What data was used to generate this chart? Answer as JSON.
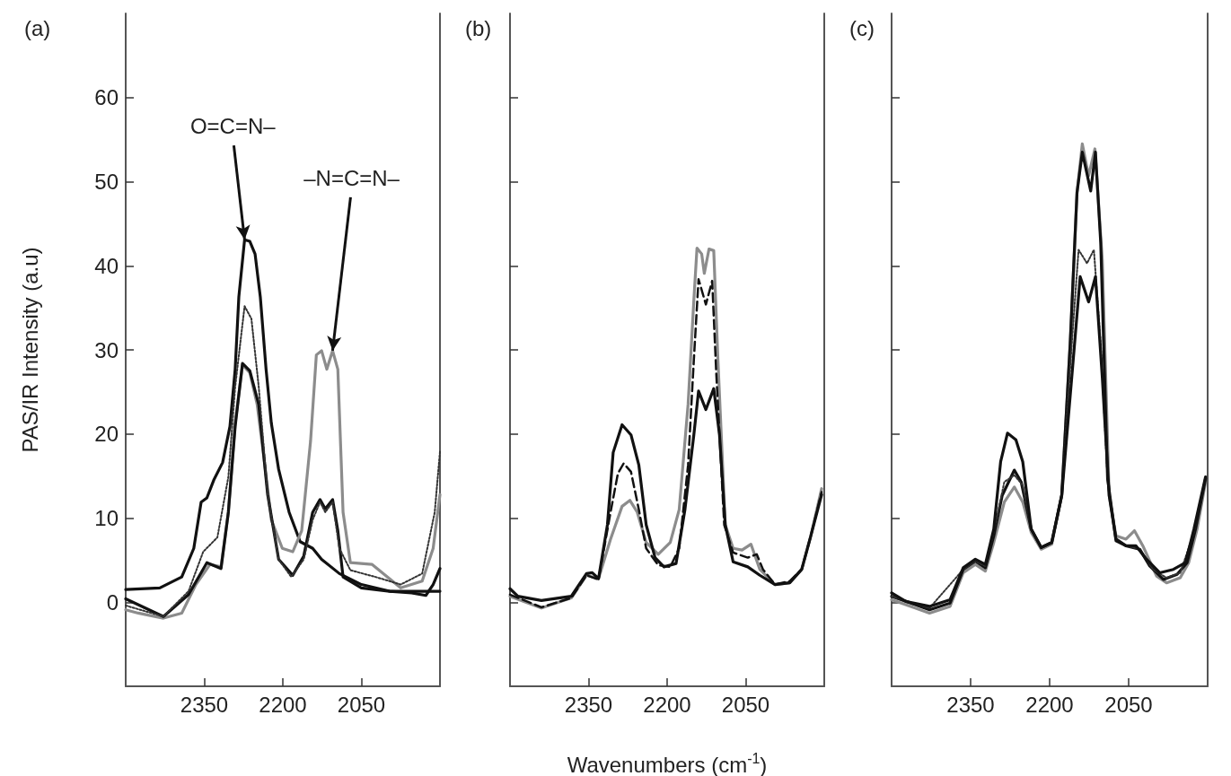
{
  "chart_data": [
    {
      "type": "line",
      "title": "(a)",
      "ylabel": "PAS/IR Intensity (a.u)",
      "xlim": [
        2500,
        1900
      ],
      "xticks": [
        2350,
        2200,
        2050
      ],
      "ylim": [
        -10,
        70
      ],
      "yticks": [
        0,
        10,
        20,
        30,
        40,
        50,
        60
      ],
      "annotations": [
        {
          "text": "O=C=N–",
          "x": 2273,
          "y": 43.1
        },
        {
          "text": "–N=C=N–",
          "x": 2105,
          "y": 29.9
        }
      ],
      "series": [
        {
          "color": "#111111",
          "x": [
            2500,
            2435,
            2393,
            2370,
            2356,
            2345,
            2332,
            2315,
            2301,
            2291,
            2284,
            2273,
            2263,
            2253,
            2243,
            2232,
            2222,
            2208,
            2188,
            2167,
            2143,
            2126,
            2092,
            2050,
            1996,
            1954,
            1927,
            1913,
            1900
          ],
          "values": [
            1.5,
            1.7,
            3.0,
            6.4,
            11.9,
            12.4,
            14.5,
            16.6,
            20.9,
            27.7,
            36.3,
            43.1,
            42.9,
            41.4,
            36.3,
            27.7,
            21.3,
            15.8,
            10.7,
            7.2,
            6.4,
            5.1,
            3.4,
            2.1,
            1.3,
            1.1,
            0.8,
            2.1,
            4.0
          ]
        },
        {
          "color": "#8c8c8c",
          "x": [
            2500,
            2476,
            2428,
            2393,
            2366,
            2339,
            2318,
            2304,
            2291,
            2277,
            2263,
            2249,
            2236,
            2222,
            2201,
            2181,
            2164,
            2147,
            2136,
            2126,
            2116,
            2105,
            2095,
            2085,
            2071,
            2030,
            1975,
            1934,
            1913,
            1900
          ],
          "values": [
            -0.9,
            -1.3,
            -1.9,
            -1.3,
            2.1,
            4.5,
            4.2,
            10.7,
            21.3,
            28.2,
            27.3,
            23.5,
            17.1,
            9.8,
            6.4,
            6.0,
            8.5,
            19.2,
            29.4,
            29.9,
            27.7,
            29.9,
            27.7,
            10.7,
            4.7,
            4.5,
            1.7,
            2.5,
            6.4,
            12.8
          ]
        },
        {
          "color": "#111111",
          "x": [
            2500,
            2428,
            2380,
            2345,
            2318,
            2304,
            2291,
            2277,
            2263,
            2246,
            2229,
            2208,
            2181,
            2160,
            2143,
            2129,
            2119,
            2105,
            2095,
            2085,
            2050,
            1996,
            1934,
            1900
          ],
          "values": [
            0.4,
            -1.7,
            0.9,
            4.7,
            4.0,
            10.7,
            20.9,
            28.4,
            27.5,
            23.5,
            12.8,
            5.1,
            3.2,
            5.5,
            10.7,
            12.2,
            11.1,
            12.2,
            8.5,
            3.0,
            1.7,
            1.3,
            1.3,
            1.3
          ]
        },
        {
          "color": "#333333",
          "line_style": "dotted",
          "x": [
            2500,
            2428,
            2380,
            2352,
            2325,
            2304,
            2291,
            2273,
            2260,
            2246,
            2229,
            2208,
            2184,
            2160,
            2143,
            2129,
            2119,
            2105,
            2092,
            2071,
            2023,
            1975,
            1934,
            1910,
            1900
          ],
          "values": [
            -0.4,
            -1.7,
            1.3,
            6.0,
            7.7,
            14.9,
            25.6,
            35.2,
            33.7,
            25.6,
            12.8,
            5.1,
            3.0,
            5.1,
            9.8,
            11.9,
            10.7,
            11.9,
            6.4,
            3.8,
            3.0,
            2.1,
            3.4,
            10.7,
            17.9
          ]
        }
      ]
    },
    {
      "type": "line",
      "title": "(b)",
      "xlabel": "Wavenumbers (cm$^{-1}$)",
      "xlim": [
        2500,
        1900
      ],
      "xticks": [
        2350,
        2200,
        2050
      ],
      "ylim": [
        -10,
        70
      ],
      "yticks": [
        0,
        10,
        20,
        30,
        40,
        50,
        60
      ],
      "tick_labels": "x",
      "series": [
        {
          "color": "#8c8c8c",
          "x": [
            2500,
            2440,
            2383,
            2354,
            2331,
            2308,
            2286,
            2271,
            2257,
            2240,
            2217,
            2194,
            2177,
            2160,
            2149,
            2143,
            2134,
            2129,
            2120,
            2111,
            2103,
            2089,
            2074,
            2057,
            2040,
            2023,
            1994,
            1966,
            1943,
            1926,
            1905
          ],
          "values": [
            0.7,
            -0.7,
            0.5,
            3.2,
            2.8,
            7.5,
            11.4,
            12.1,
            10.7,
            7.1,
            5.7,
            7.1,
            11.0,
            23.5,
            35.9,
            42.1,
            41.4,
            39.1,
            42.0,
            41.8,
            28.8,
            9.2,
            6.4,
            6.2,
            6.9,
            3.9,
            2.1,
            2.3,
            3.9,
            7.8,
            13.5
          ]
        },
        {
          "color": "#111111",
          "line_style": "dashed",
          "x": [
            2500,
            2440,
            2383,
            2354,
            2331,
            2308,
            2294,
            2283,
            2269,
            2254,
            2240,
            2217,
            2194,
            2177,
            2160,
            2149,
            2140,
            2126,
            2114,
            2106,
            2091,
            2074,
            2046,
            2029,
            2017,
            1994,
            1966,
            1943,
            1926,
            1905
          ],
          "values": [
            0.9,
            -0.6,
            0.5,
            3.2,
            2.7,
            10.7,
            15.3,
            16.5,
            15.5,
            11.0,
            6.4,
            4.4,
            4.2,
            6.4,
            16.3,
            28.8,
            38.4,
            35.4,
            38.2,
            27.0,
            9.2,
            5.9,
            5.3,
            5.7,
            3.9,
            2.1,
            2.5,
            3.9,
            7.8,
            13.1
          ]
        },
        {
          "color": "#111111",
          "x": [
            2500,
            2485,
            2440,
            2383,
            2354,
            2343,
            2331,
            2314,
            2303,
            2286,
            2269,
            2254,
            2240,
            2223,
            2206,
            2183,
            2166,
            2149,
            2140,
            2126,
            2111,
            2100,
            2089,
            2074,
            2046,
            2023,
            1994,
            1966,
            1943,
            1926,
            1905
          ],
          "values": [
            1.6,
            0.7,
            0.2,
            0.7,
            3.4,
            3.5,
            2.8,
            9.2,
            17.8,
            21.1,
            19.9,
            16.3,
            9.2,
            5.3,
            4.2,
            4.6,
            11.0,
            19.9,
            25.1,
            22.9,
            25.4,
            19.9,
            9.2,
            4.8,
            4.2,
            3.2,
            2.1,
            2.3,
            3.9,
            7.8,
            12.8
          ]
        }
      ]
    },
    {
      "type": "line",
      "title": "(c)",
      "xlim": [
        2500,
        1900
      ],
      "xticks": [
        2350,
        2200,
        2050
      ],
      "ylim": [
        -10,
        70
      ],
      "yticks": [
        0,
        10,
        20,
        30,
        40,
        50,
        60
      ],
      "tick_labels": "x",
      "series": [
        {
          "color": "#8c8c8c",
          "x": [
            2500,
            2428,
            2389,
            2364,
            2341,
            2322,
            2306,
            2286,
            2267,
            2251,
            2235,
            2216,
            2196,
            2177,
            2161,
            2148,
            2138,
            2126,
            2114,
            2100,
            2087,
            2074,
            2055,
            2039,
            2023,
            1997,
            1978,
            1952,
            1936,
            1920,
            1904
          ],
          "values": [
            0.3,
            -1.3,
            -0.5,
            3.5,
            4.5,
            3.7,
            7.1,
            11.9,
            13.7,
            11.9,
            8.3,
            6.3,
            6.9,
            12.7,
            30.7,
            48.7,
            54.5,
            50.7,
            53.9,
            40.7,
            12.7,
            7.9,
            7.5,
            8.5,
            6.7,
            3.1,
            2.3,
            2.9,
            4.7,
            8.7,
            14.3
          ]
        },
        {
          "color": "#111111",
          "x": [
            2500,
            2428,
            2389,
            2364,
            2341,
            2322,
            2306,
            2290,
            2267,
            2254,
            2235,
            2216,
            2196,
            2177,
            2161,
            2148,
            2138,
            2122,
            2113,
            2103,
            2090,
            2074,
            2055,
            2029,
            2010,
            1984,
            1958,
            1939,
            1923,
            1904
          ],
          "values": [
            0.7,
            -0.9,
            -0.1,
            3.9,
            4.9,
            4.1,
            7.9,
            12.7,
            15.7,
            14.3,
            8.7,
            6.5,
            7.1,
            12.7,
            30.7,
            48.7,
            53.5,
            48.9,
            53.5,
            42.7,
            14.7,
            7.3,
            6.7,
            6.3,
            4.3,
            2.7,
            3.3,
            4.7,
            8.7,
            14.7
          ]
        },
        {
          "color": "#333333",
          "line_style": "dotted",
          "x": [
            2500,
            2428,
            2364,
            2341,
            2322,
            2306,
            2286,
            2267,
            2251,
            2235,
            2216,
            2196,
            2177,
            2158,
            2145,
            2129,
            2116,
            2103,
            2090,
            2074,
            2055,
            2029,
            2004,
            1978,
            1952,
            1926,
            1904
          ],
          "values": [
            0.7,
            -0.7,
            3.9,
            4.9,
            4.3,
            8.3,
            14.3,
            15.1,
            13.9,
            8.7,
            6.5,
            7.1,
            12.7,
            30.7,
            41.9,
            40.3,
            41.9,
            30.7,
            14.7,
            7.5,
            6.7,
            6.3,
            3.9,
            2.9,
            3.5,
            8.3,
            14.7
          ]
        },
        {
          "color": "#111111",
          "x": [
            2500,
            2473,
            2428,
            2389,
            2364,
            2341,
            2322,
            2306,
            2293,
            2280,
            2264,
            2251,
            2235,
            2216,
            2196,
            2177,
            2158,
            2142,
            2126,
            2113,
            2100,
            2087,
            2074,
            2055,
            2036,
            2016,
            1991,
            1965,
            1942,
            1926,
            1904
          ],
          "values": [
            1.1,
            0.1,
            -0.5,
            0.3,
            4.1,
            5.1,
            4.5,
            8.7,
            16.7,
            20.1,
            19.3,
            16.7,
            8.7,
            6.5,
            7.1,
            12.7,
            26.7,
            38.7,
            35.7,
            38.7,
            26.7,
            12.7,
            7.5,
            6.7,
            6.7,
            5.1,
            3.5,
            3.9,
            4.7,
            8.7,
            14.9
          ]
        }
      ]
    }
  ]
}
